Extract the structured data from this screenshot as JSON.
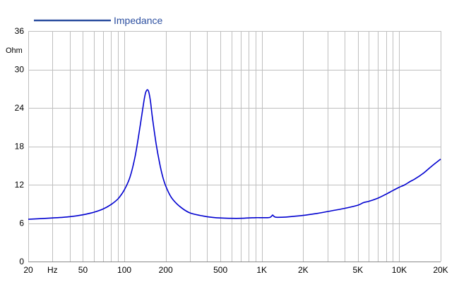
{
  "chart_data": {
    "type": "line",
    "xscale": "log",
    "xlim": [
      20,
      20000
    ],
    "ylim": [
      0,
      36
    ],
    "grid": true,
    "legend_position": "top-left",
    "x_ticks": [
      {
        "value": 20,
        "label": "20"
      },
      {
        "value": 30,
        "label": "Hz"
      },
      {
        "value": 50,
        "label": "50"
      },
      {
        "value": 100,
        "label": "100"
      },
      {
        "value": 200,
        "label": "200"
      },
      {
        "value": 500,
        "label": "500"
      },
      {
        "value": 1000,
        "label": "1K"
      },
      {
        "value": 2000,
        "label": "2K"
      },
      {
        "value": 5000,
        "label": "5K"
      },
      {
        "value": 10000,
        "label": "10K"
      },
      {
        "value": 20000,
        "label": "20K"
      }
    ],
    "x_gridlines": [
      20,
      30,
      40,
      50,
      60,
      70,
      80,
      90,
      100,
      200,
      300,
      400,
      500,
      600,
      700,
      800,
      900,
      1000,
      2000,
      3000,
      4000,
      5000,
      6000,
      7000,
      8000,
      9000,
      10000,
      20000
    ],
    "y_ticks": [
      0,
      6,
      12,
      18,
      24,
      30,
      36
    ],
    "ylabel": "Ohm",
    "series": [
      {
        "name": "Impedance",
        "color": "#0000d0",
        "x": [
          20,
          30,
          40,
          50,
          60,
          70,
          80,
          90,
          100,
          110,
          120,
          130,
          140,
          145,
          150,
          155,
          160,
          170,
          180,
          190,
          200,
          220,
          250,
          300,
          400,
          500,
          600,
          700,
          800,
          900,
          1000,
          1100,
          1150,
          1180,
          1200,
          1220,
          1250,
          1300,
          1500,
          2000,
          2500,
          3000,
          4000,
          5000,
          5500,
          6000,
          7000,
          8000,
          9000,
          10000,
          11000,
          12000,
          13000,
          15000,
          17000,
          20000
        ],
        "values": [
          6.6,
          6.8,
          7.0,
          7.3,
          7.7,
          8.2,
          8.9,
          9.8,
          11.2,
          13.2,
          16.5,
          21.0,
          25.5,
          26.7,
          26.6,
          25.0,
          22.5,
          18.5,
          15.5,
          13.3,
          11.8,
          10.0,
          8.7,
          7.6,
          7.0,
          6.8,
          6.75,
          6.75,
          6.8,
          6.85,
          6.85,
          6.85,
          6.9,
          7.1,
          7.25,
          7.1,
          6.95,
          6.9,
          6.95,
          7.2,
          7.5,
          7.8,
          8.3,
          8.8,
          9.2,
          9.4,
          9.9,
          10.5,
          11.1,
          11.6,
          12.0,
          12.5,
          12.9,
          13.8,
          14.8,
          16.0
        ]
      }
    ]
  }
}
